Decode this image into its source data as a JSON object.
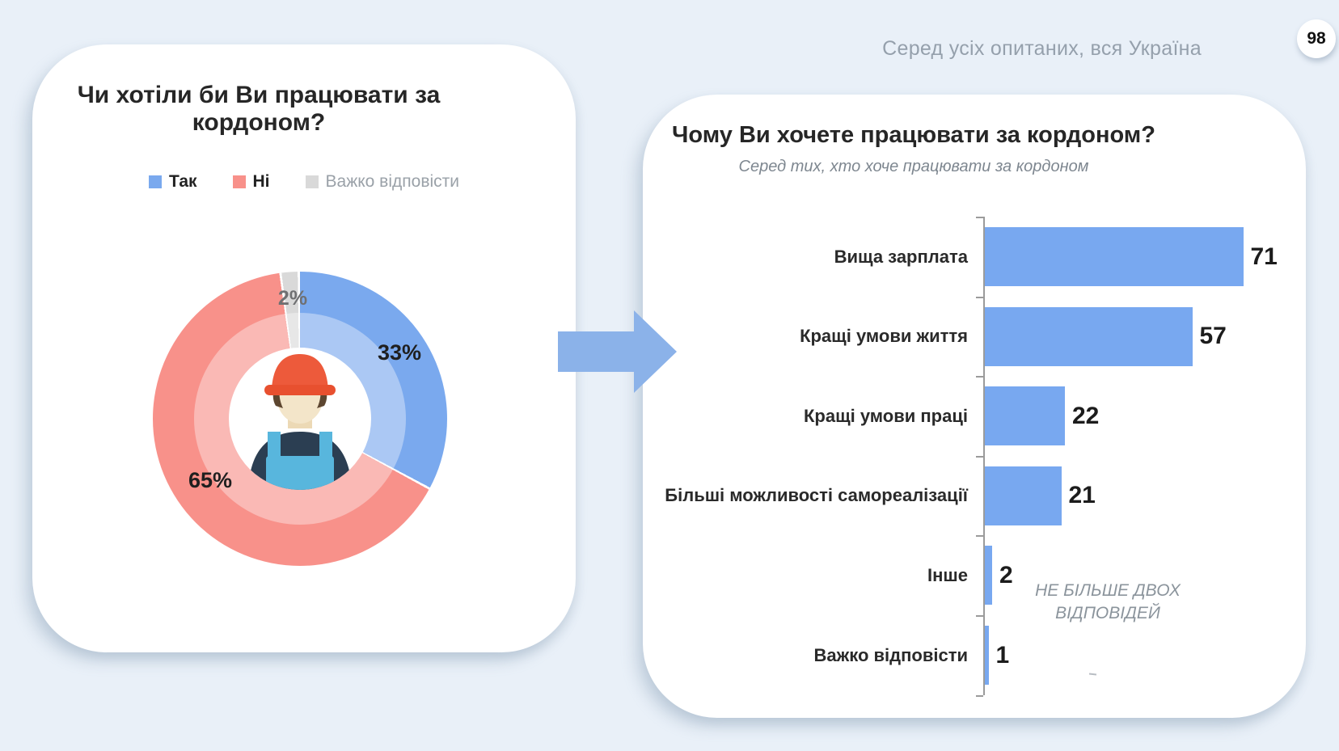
{
  "page": {
    "context_note": "Серед усіх опитаних, вся Україна",
    "page_number": "98"
  },
  "colors": {
    "background": "#e9f0f8",
    "panel": "#ffffff",
    "accent_blue": "#78a8f0",
    "accent_red": "#f8918a",
    "neutral_gray": "#d9d9d9",
    "arrow_blue": "#8bb2e9"
  },
  "icons": {
    "between_panels": "arrow-right-icon",
    "donut_center": "worker-icon"
  },
  "chart_data": [
    {
      "type": "pie",
      "donut": true,
      "title": "Чи хотіли би Ви працювати за кордоном?",
      "labels": [
        "Так",
        "Ні",
        "Важко відповісти"
      ],
      "values": [
        33,
        65,
        2
      ],
      "unit": "%",
      "colors": [
        "#7aa9ee",
        "#f8918a",
        "#d9d9d9"
      ],
      "legend_position": "top",
      "center_icon": "worker-icon"
    },
    {
      "type": "bar",
      "orientation": "horizontal",
      "title": "Чому Ви хочете працювати за кордоном?",
      "subtitle": "Серед тих, хто хоче працювати за кордоном",
      "categories": [
        "Вища зарплата",
        "Кращі умови життя",
        "Кращі умови праці",
        "Більші можливості самореалізації",
        "Інше",
        "Важко відповісти"
      ],
      "values": [
        71,
        57,
        22,
        21,
        2,
        1
      ],
      "bar_color": "#78a8f0",
      "xlim": [
        0,
        75
      ],
      "grid": false,
      "note": "НЕ БІЛЬШЕ ДВОХ ВІДПОВІДЕЙ"
    }
  ]
}
